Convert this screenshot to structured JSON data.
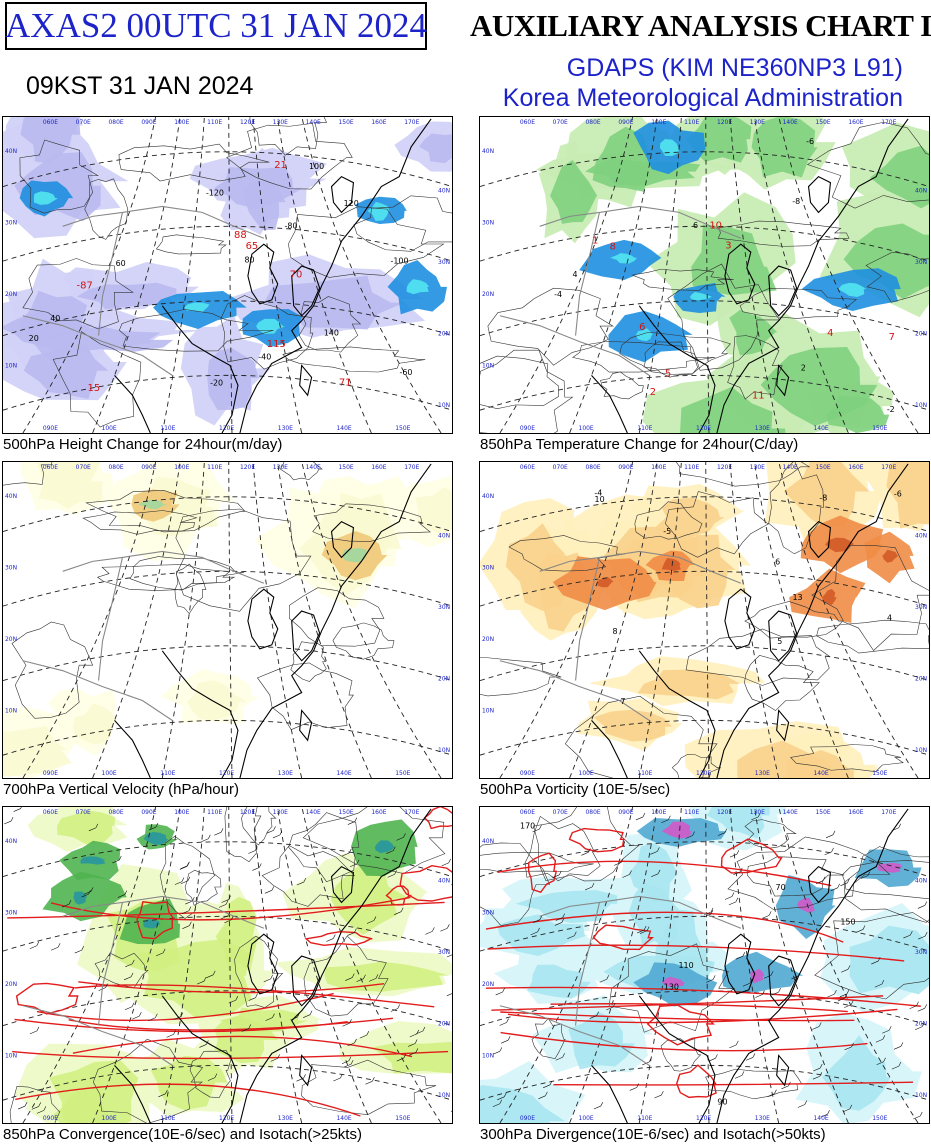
{
  "header": {
    "product_code": "AXAS2  00UTC 31 JAN 2024",
    "title": "AUXILIARY ANALYSIS CHART II",
    "model": "GDAPS (KIM NE360NP3 L91)",
    "agency": "Korea Meteorological Administration",
    "local_time": "09KST 31 JAN 2024"
  },
  "grid_labels": {
    "longitudes": [
      "060E",
      "070E",
      "080E",
      "090E",
      "100E",
      "110E",
      "120E",
      "130E",
      "140E",
      "150E",
      "160E",
      "170E"
    ],
    "bottom_longitudes": [
      "090E",
      "100E",
      "110E",
      "120E",
      "130E",
      "140E",
      "150E"
    ],
    "latitudes": [
      "10N",
      "20N",
      "30N",
      "40N"
    ]
  },
  "panels": [
    {
      "id": "height-change",
      "caption": "500hPa Height Change for 24hour(m/day)",
      "palette": {
        "fill": "#b9b9f0",
        "light": "#d2d2f8",
        "strong": "#1e8fe0",
        "cyan": "#52e6f0"
      },
      "contour_labels": [
        "20",
        "40",
        "60",
        "80",
        "100",
        "120",
        "140",
        "-20",
        "-40",
        "-60",
        "-80",
        "-100",
        "-120"
      ],
      "center_labels": [
        "115",
        "-87",
        "21",
        "70",
        "65",
        "71",
        "15",
        "88"
      ]
    },
    {
      "id": "temp-change",
      "caption": "850hPa Temperature Change for 24hour(C/day)",
      "palette": {
        "fill": "#7ed07e",
        "light": "#c8ecb4",
        "strong": "#1e8fe0",
        "cyan": "#52e6f0"
      },
      "contour_labels": [
        "2",
        "4",
        "6",
        "-2",
        "-4",
        "-6",
        "-8"
      ],
      "center_labels": [
        "5",
        "4",
        "2",
        "6",
        "7",
        "1",
        "8",
        "3",
        "11",
        "10"
      ]
    },
    {
      "id": "vertical-velocity",
      "caption": "700hPa Vertical Velocity (hPa/hour)",
      "palette": {
        "fill": "#fafad2",
        "light": "#ffffe6",
        "strong": "#f0c878",
        "cyan": "#a0d8a0"
      },
      "contour_labels": [],
      "center_labels": []
    },
    {
      "id": "vorticity",
      "caption": "500hPa Vorticity (10E-5/sec)",
      "palette": {
        "fill": "#fad28c",
        "light": "#fff0be",
        "strong": "#f08c46",
        "cyan": "#d25a28"
      },
      "contour_labels": [
        "-4",
        "-5",
        "-6",
        "-8",
        "4",
        "5",
        "6",
        "7",
        "8",
        "10",
        "13"
      ],
      "center_labels": []
    },
    {
      "id": "convergence-isotach",
      "caption": "850hPa Convergence(10E-6/sec) and Isotach(>25kts)",
      "palette": {
        "fill": "#d2f082",
        "light": "#eefac8",
        "strong": "#50b450",
        "cyan": "#2896a0"
      },
      "contour_labels": [],
      "center_labels": []
    },
    {
      "id": "divergence-isotach",
      "caption": "300hPa Divergence(10E-6/sec) and Isotach(>50kts)",
      "palette": {
        "fill": "#a8e6f0",
        "light": "#d6f5fa",
        "strong": "#50a8d2",
        "cyan": "#d25ac8"
      },
      "contour_labels": [
        "70",
        "90",
        "110",
        "130",
        "150",
        "170"
      ],
      "center_labels": []
    }
  ]
}
